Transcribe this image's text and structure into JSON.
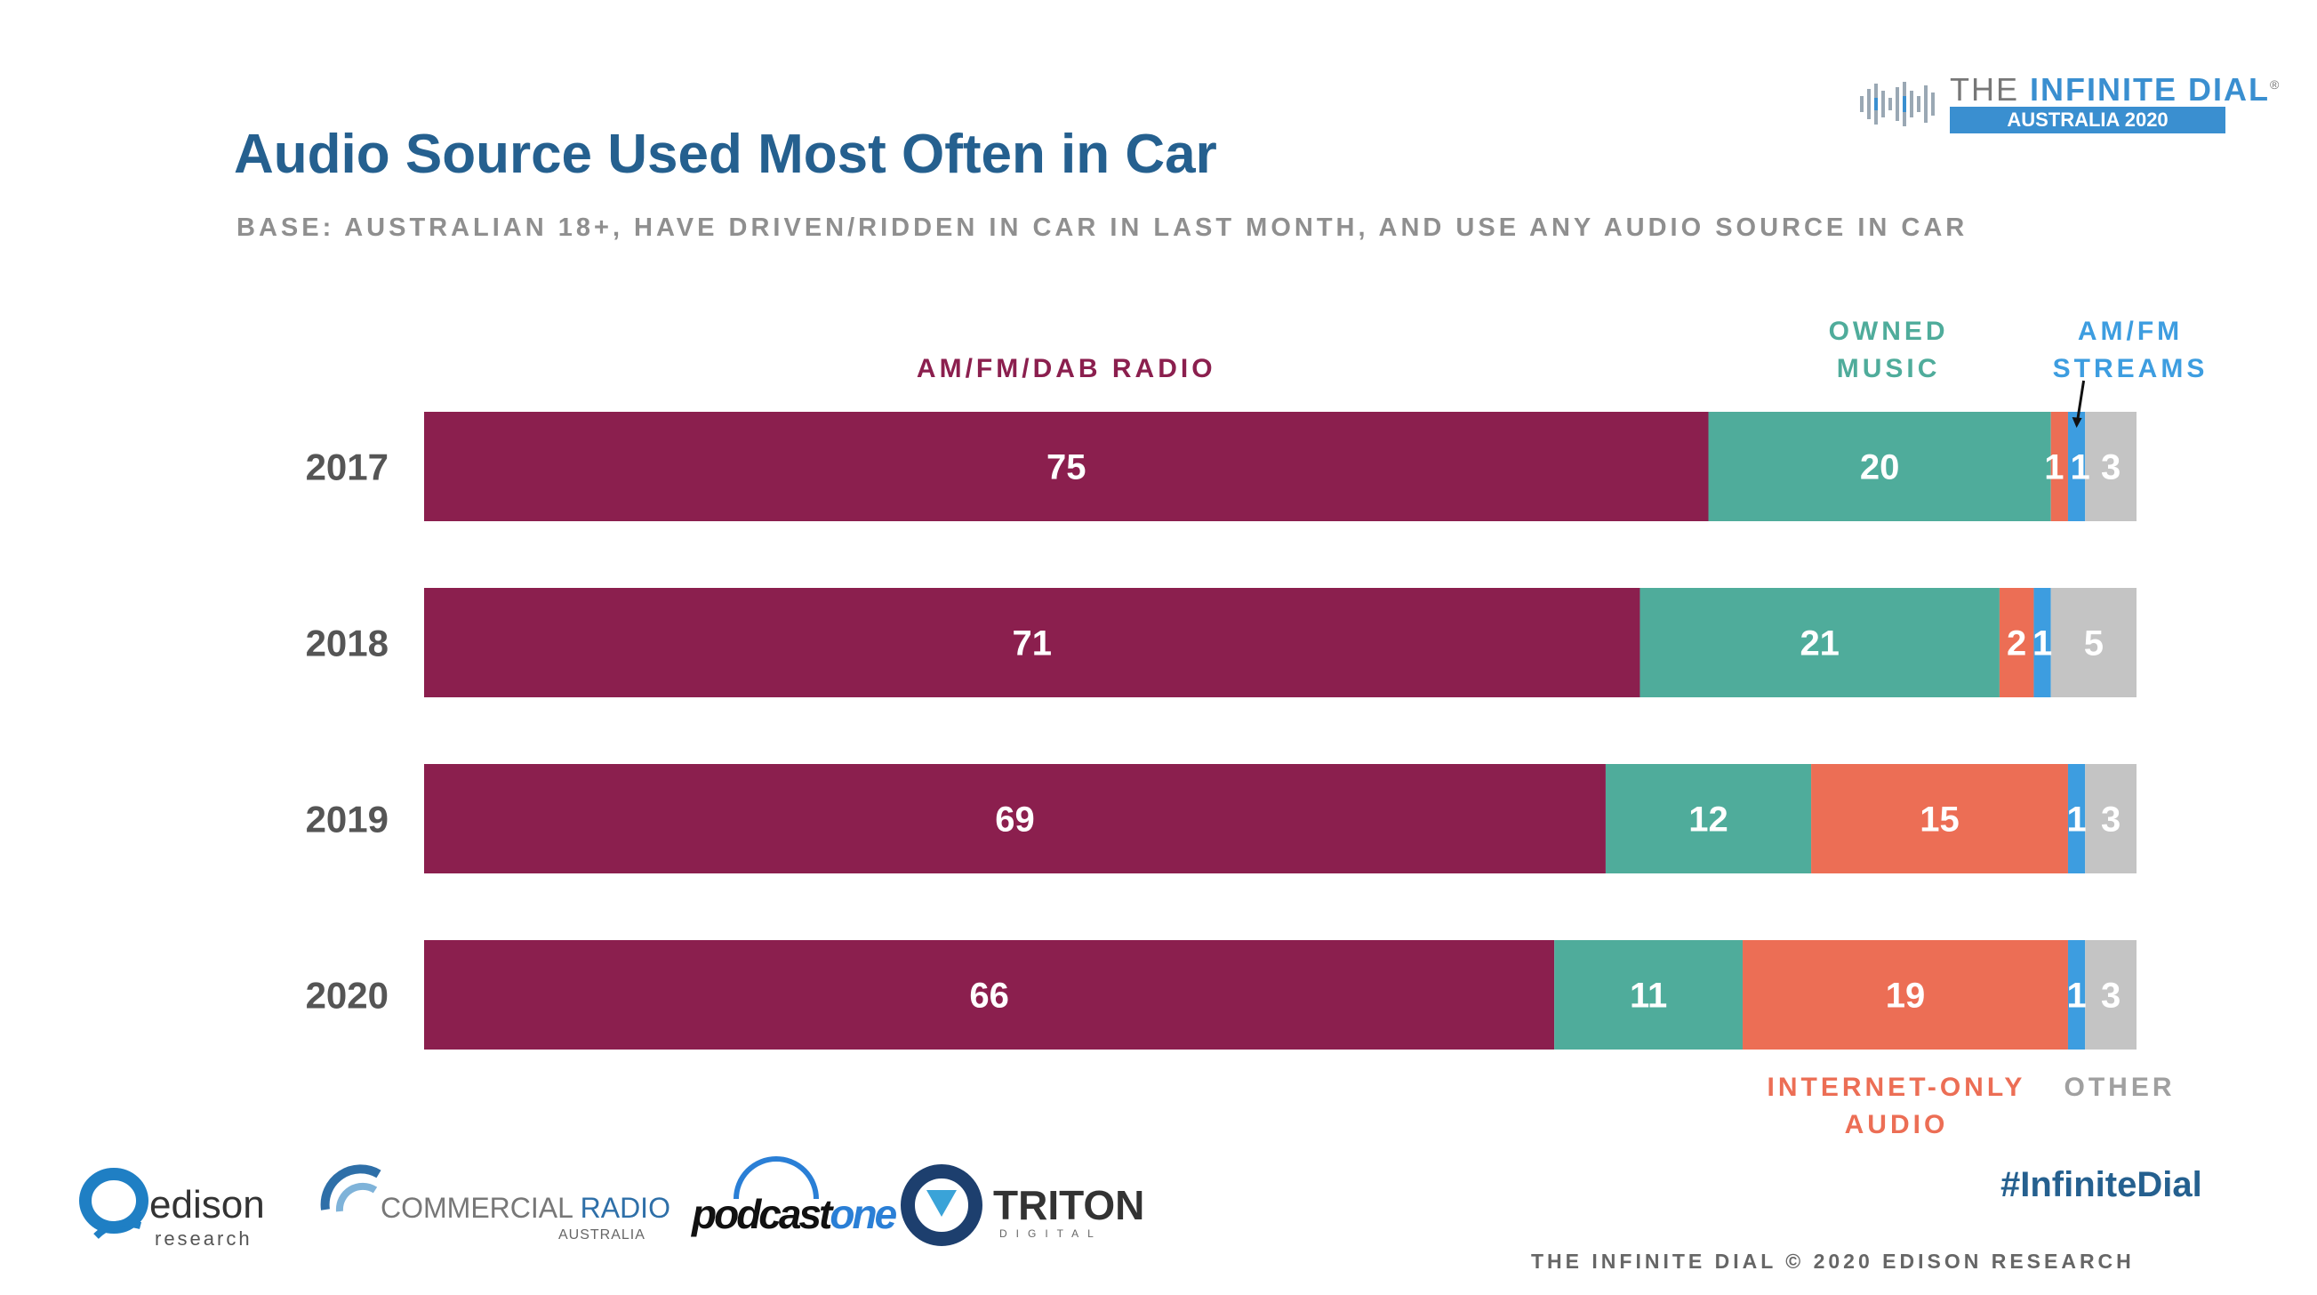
{
  "header": {
    "title": "Audio Source Used Most Often in Car",
    "subtitle": "BASE: AUSTRALIAN 18+, HAVE DRIVEN/RIDDEN IN CAR IN LAST MONTH, AND USE ANY AUDIO SOURCE IN CAR"
  },
  "brand": {
    "line1_plain": "THE ",
    "line1_accent": "INFINITE DIAL",
    "reg": "®",
    "line2": "AUSTRALIA 2020"
  },
  "chart_data": {
    "type": "bar",
    "orientation": "horizontal",
    "stacked": true,
    "categories": [
      "2017",
      "2018",
      "2019",
      "2020"
    ],
    "series": [
      {
        "name": "AM/FM/DAB RADIO",
        "color": "#8b1f4e",
        "values": [
          75,
          71,
          69,
          66
        ]
      },
      {
        "name": "OWNED MUSIC",
        "color": "#4fac9b",
        "values": [
          20,
          21,
          12,
          11
        ]
      },
      {
        "name": "INTERNET-ONLY AUDIO",
        "color": "#ec6e55",
        "values": [
          1,
          2,
          15,
          19
        ]
      },
      {
        "name": "AM/FM STREAMS",
        "color": "#3d9de0",
        "values": [
          1,
          1,
          1,
          1
        ]
      },
      {
        "name": "OTHER",
        "color": "#c4c4c4",
        "values": [
          3,
          5,
          3,
          3
        ]
      }
    ],
    "legend_labels": [
      {
        "lines": [
          "AM/FM/DAB RADIO"
        ],
        "color": "#8b1f4e"
      },
      {
        "lines": [
          "OWNED",
          "MUSIC"
        ],
        "color": "#4fac9b"
      },
      {
        "lines": [
          "AM/FM",
          "STREAMS"
        ],
        "color": "#3d9de0"
      },
      {
        "lines": [
          "INTERNET-ONLY",
          "AUDIO"
        ],
        "color": "#ec6e55"
      },
      {
        "lines": [
          "OTHER"
        ],
        "color": "#a0a0a0"
      }
    ],
    "xlim": [
      0,
      100
    ],
    "grid": false,
    "legend": "labels placed above and below the bars"
  },
  "footer": {
    "hashtag": "#InfiniteDial",
    "copyright": "THE INFINITE DIAL  © 2020 EDISON RESEARCH"
  },
  "logos": {
    "edison": {
      "word": "edison",
      "sub": "research"
    },
    "commercial": {
      "word_plain": "COMMERCIAL ",
      "word_accent": "RADIO",
      "sub": "AUSTRALIA"
    },
    "podcast": {
      "word_plain": "podcast",
      "word_accent": "one"
    },
    "triton": {
      "word": "TRITON",
      "sub": "DIGITAL"
    }
  }
}
